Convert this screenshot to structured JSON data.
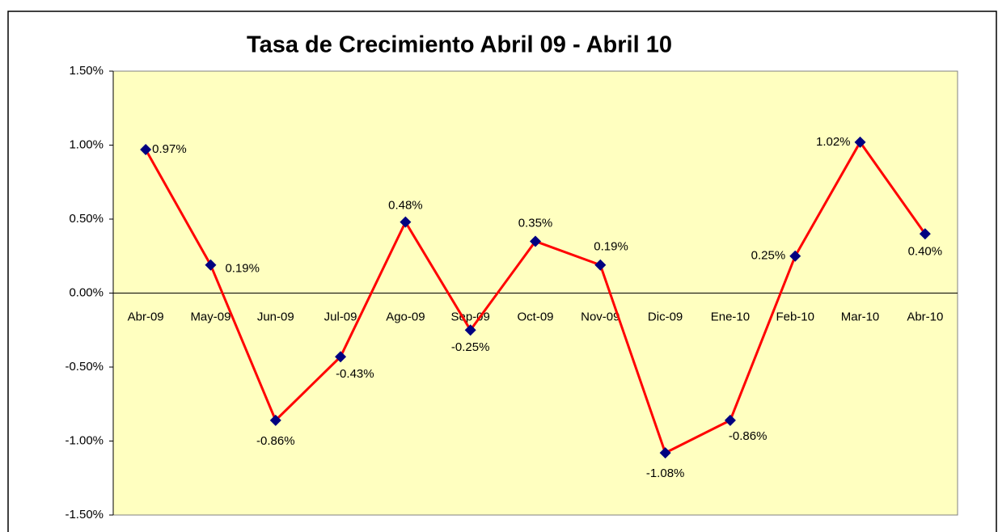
{
  "chart_data": {
    "type": "line",
    "title": "Tasa de Crecimiento  Abril 09 - Abril 10",
    "categories": [
      "Abr-09",
      "May-09",
      "Jun-09",
      "Jul-09",
      "Ago-09",
      "Sep-09",
      "Oct-09",
      "Nov-09",
      "Dic-09",
      "Ene-10",
      "Feb-10",
      "Mar-10",
      "Abr-10"
    ],
    "series": [
      {
        "color": "#ff0000",
        "marker_color": "#000080",
        "values": [
          0.97,
          0.19,
          -0.86,
          -0.43,
          0.48,
          -0.25,
          0.35,
          0.19,
          -1.08,
          -0.86,
          0.25,
          1.02,
          0.4
        ],
        "value_labels": [
          "0.97%",
          "0.19%",
          "-0.86%",
          "-0.43%",
          "0.48%",
          "-0.25%",
          "0.35%",
          "0.19%",
          "-1.08%",
          "-0.86%",
          "0.25%",
          "1.02%",
          "0.40%"
        ]
      }
    ],
    "ylim": [
      -1.5,
      1.5
    ],
    "yticks": [
      {
        "value": -1.5,
        "label": "-1.50%"
      },
      {
        "value": -1.0,
        "label": "-1.00%"
      },
      {
        "value": -0.5,
        "label": "-0.50%"
      },
      {
        "value": 0,
        "label": "0.00%"
      },
      {
        "value": 0.5,
        "label": "0.50%"
      },
      {
        "value": 1.0,
        "label": "1.00%"
      },
      {
        "value": 1.5,
        "label": "1.50%"
      }
    ],
    "plot_background": "#ffffc0",
    "grid": false
  }
}
